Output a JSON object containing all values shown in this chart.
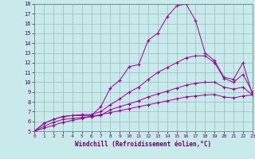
{
  "xlabel": "Windchill (Refroidissement éolien,°C)",
  "xlim": [
    0,
    23
  ],
  "ylim": [
    5,
    18
  ],
  "xticks": [
    0,
    1,
    2,
    3,
    4,
    5,
    6,
    7,
    8,
    9,
    10,
    11,
    12,
    13,
    14,
    15,
    16,
    17,
    18,
    19,
    20,
    21,
    22,
    23
  ],
  "yticks": [
    5,
    6,
    7,
    8,
    9,
    10,
    11,
    12,
    13,
    14,
    15,
    16,
    17,
    18
  ],
  "background_color": "#c8eaea",
  "line_color": "#990099",
  "grid_color": "#99bbbb",
  "lines": [
    {
      "x": [
        0,
        1,
        2,
        3,
        4,
        5,
        6,
        7,
        8,
        9,
        10,
        11,
        12,
        13,
        14,
        15,
        16,
        17,
        18,
        19,
        20,
        21,
        22,
        23
      ],
      "y": [
        5.0,
        5.8,
        6.2,
        6.5,
        6.6,
        6.6,
        6.6,
        7.5,
        9.4,
        10.2,
        11.6,
        11.8,
        14.3,
        15.0,
        16.7,
        17.8,
        18.0,
        16.3,
        13.0,
        12.2,
        10.5,
        10.3,
        12.0,
        8.7
      ]
    },
    {
      "x": [
        0,
        1,
        2,
        3,
        4,
        5,
        6,
        7,
        8,
        9,
        10,
        11,
        12,
        13,
        14,
        15,
        16,
        17,
        18,
        19,
        20,
        21,
        22,
        23
      ],
      "y": [
        5.0,
        5.8,
        6.2,
        6.5,
        6.6,
        6.7,
        6.7,
        7.0,
        7.7,
        8.3,
        9.0,
        9.5,
        10.3,
        11.0,
        11.5,
        12.0,
        12.5,
        12.7,
        12.7,
        12.0,
        10.4,
        10.0,
        10.8,
        9.0
      ]
    },
    {
      "x": [
        0,
        1,
        2,
        3,
        4,
        5,
        6,
        7,
        8,
        9,
        10,
        11,
        12,
        13,
        14,
        15,
        16,
        17,
        18,
        19,
        20,
        21,
        22,
        23
      ],
      "y": [
        5.0,
        5.5,
        5.9,
        6.2,
        6.3,
        6.4,
        6.5,
        6.6,
        7.2,
        7.5,
        7.8,
        8.1,
        8.5,
        8.8,
        9.1,
        9.4,
        9.7,
        9.9,
        10.0,
        10.0,
        9.5,
        9.3,
        9.5,
        8.7
      ]
    },
    {
      "x": [
        0,
        1,
        2,
        3,
        4,
        5,
        6,
        7,
        8,
        9,
        10,
        11,
        12,
        13,
        14,
        15,
        16,
        17,
        18,
        19,
        20,
        21,
        22,
        23
      ],
      "y": [
        5.0,
        5.3,
        5.6,
        5.9,
        6.1,
        6.3,
        6.5,
        6.7,
        6.9,
        7.1,
        7.3,
        7.5,
        7.7,
        7.9,
        8.1,
        8.3,
        8.5,
        8.6,
        8.7,
        8.75,
        8.5,
        8.4,
        8.6,
        8.7
      ]
    }
  ]
}
